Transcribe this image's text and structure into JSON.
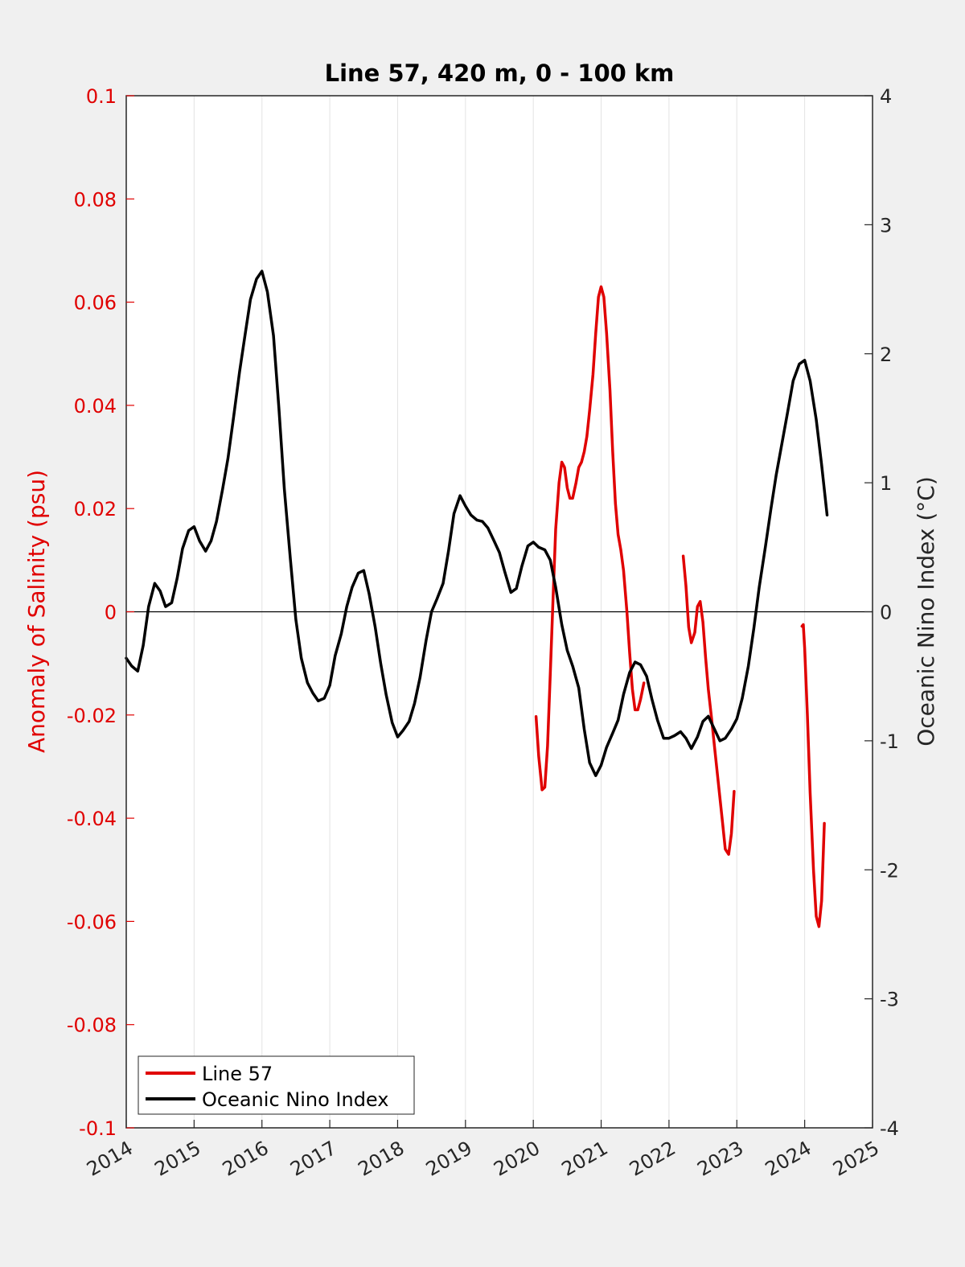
{
  "chart_data": {
    "type": "line",
    "title": "Line 57, 420 m, 0 - 100 km",
    "ylabel_left": "Anomaly of Salinity (psu)",
    "ylabel_right": "Oceanic Nino Index (°C)",
    "xlim": [
      2014,
      2025
    ],
    "ylim_left": [
      -0.1,
      0.1
    ],
    "ylim_right": [
      -4,
      4
    ],
    "xticks": [
      "2014",
      "2015",
      "2016",
      "2017",
      "2018",
      "2019",
      "2020",
      "2021",
      "2022",
      "2023",
      "2024",
      "2025"
    ],
    "yticks_left": [
      "0.1",
      "0.08",
      "0.06",
      "0.04",
      "0.02",
      "0",
      "-0.02",
      "-0.04",
      "-0.06",
      "-0.08",
      "-0.1"
    ],
    "yticks_right": [
      "4",
      "3",
      "2",
      "1",
      "0",
      "-1",
      "-2",
      "-3",
      "-4"
    ],
    "grid": "vertical",
    "zero_line": true,
    "legend_position": "bottom-left",
    "series": [
      {
        "name": "Line 57",
        "axis": "left",
        "color": "#e00000",
        "segments": [
          [
            [
              2020.04,
              -0.0203
            ],
            [
              2020.08,
              -0.028
            ],
            [
              2020.13,
              -0.0345
            ],
            [
              2020.17,
              -0.034
            ],
            [
              2020.21,
              -0.026
            ],
            [
              2020.25,
              -0.012
            ],
            [
              2020.29,
              0.002
            ],
            [
              2020.33,
              0.016
            ],
            [
              2020.38,
              0.025
            ],
            [
              2020.42,
              0.029
            ],
            [
              2020.46,
              0.028
            ],
            [
              2020.5,
              0.024
            ],
            [
              2020.54,
              0.022
            ],
            [
              2020.58,
              0.022
            ],
            [
              2020.63,
              0.025
            ],
            [
              2020.67,
              0.028
            ],
            [
              2020.71,
              0.029
            ],
            [
              2020.75,
              0.031
            ],
            [
              2020.79,
              0.034
            ],
            [
              2020.83,
              0.039
            ],
            [
              2020.88,
              0.046
            ],
            [
              2020.92,
              0.054
            ],
            [
              2020.96,
              0.061
            ],
            [
              2021.0,
              0.063
            ],
            [
              2021.04,
              0.061
            ],
            [
              2021.08,
              0.054
            ],
            [
              2021.13,
              0.043
            ],
            [
              2021.17,
              0.031
            ],
            [
              2021.21,
              0.021
            ],
            [
              2021.25,
              0.015
            ],
            [
              2021.29,
              0.012
            ],
            [
              2021.33,
              0.008
            ],
            [
              2021.38,
              0.0
            ],
            [
              2021.42,
              -0.008
            ],
            [
              2021.46,
              -0.015
            ],
            [
              2021.5,
              -0.019
            ],
            [
              2021.54,
              -0.019
            ],
            [
              2021.58,
              -0.017
            ],
            [
              2021.63,
              -0.0138
            ]
          ],
          [
            [
              2022.21,
              0.0108
            ],
            [
              2022.25,
              0.005
            ],
            [
              2022.29,
              -0.003
            ],
            [
              2022.33,
              -0.006
            ],
            [
              2022.38,
              -0.004
            ],
            [
              2022.42,
              0.001
            ],
            [
              2022.46,
              0.002
            ],
            [
              2022.5,
              -0.002
            ],
            [
              2022.54,
              -0.009
            ],
            [
              2022.58,
              -0.015
            ],
            [
              2022.63,
              -0.021
            ],
            [
              2022.67,
              -0.026
            ],
            [
              2022.71,
              -0.031
            ],
            [
              2022.75,
              -0.036
            ],
            [
              2022.79,
              -0.041
            ],
            [
              2022.83,
              -0.046
            ],
            [
              2022.88,
              -0.047
            ],
            [
              2022.92,
              -0.043
            ],
            [
              2022.96,
              -0.0348
            ]
          ],
          [
            [
              2023.96,
              -0.0028
            ],
            [
              2023.98,
              -0.0025
            ],
            [
              2024.0,
              -0.007
            ],
            [
              2024.04,
              -0.02
            ],
            [
              2024.08,
              -0.035
            ],
            [
              2024.13,
              -0.05
            ],
            [
              2024.17,
              -0.059
            ],
            [
              2024.21,
              -0.061
            ],
            [
              2024.25,
              -0.056
            ],
            [
              2024.29,
              -0.041
            ]
          ]
        ]
      },
      {
        "name": "Oceanic Nino Index",
        "axis": "right",
        "color": "#000000",
        "points": [
          [
            2014.0,
            -0.36
          ],
          [
            2014.08,
            -0.42
          ],
          [
            2014.17,
            -0.46
          ],
          [
            2014.25,
            -0.26
          ],
          [
            2014.33,
            0.04
          ],
          [
            2014.42,
            0.22
          ],
          [
            2014.5,
            0.16
          ],
          [
            2014.58,
            0.04
          ],
          [
            2014.67,
            0.07
          ],
          [
            2014.75,
            0.26
          ],
          [
            2014.83,
            0.49
          ],
          [
            2014.92,
            0.63
          ],
          [
            2015.0,
            0.66
          ],
          [
            2015.08,
            0.55
          ],
          [
            2015.17,
            0.47
          ],
          [
            2015.25,
            0.55
          ],
          [
            2015.33,
            0.7
          ],
          [
            2015.42,
            0.95
          ],
          [
            2015.5,
            1.19
          ],
          [
            2015.58,
            1.5
          ],
          [
            2015.67,
            1.86
          ],
          [
            2015.75,
            2.14
          ],
          [
            2015.83,
            2.42
          ],
          [
            2015.92,
            2.58
          ],
          [
            2016.0,
            2.64
          ],
          [
            2016.08,
            2.48
          ],
          [
            2016.17,
            2.14
          ],
          [
            2016.25,
            1.58
          ],
          [
            2016.33,
            0.95
          ],
          [
            2016.42,
            0.4
          ],
          [
            2016.5,
            -0.06
          ],
          [
            2016.58,
            -0.36
          ],
          [
            2016.67,
            -0.55
          ],
          [
            2016.75,
            -0.63
          ],
          [
            2016.83,
            -0.69
          ],
          [
            2016.92,
            -0.67
          ],
          [
            2017.0,
            -0.57
          ],
          [
            2017.08,
            -0.34
          ],
          [
            2017.17,
            -0.17
          ],
          [
            2017.25,
            0.04
          ],
          [
            2017.33,
            0.19
          ],
          [
            2017.42,
            0.3
          ],
          [
            2017.5,
            0.32
          ],
          [
            2017.58,
            0.14
          ],
          [
            2017.67,
            -0.12
          ],
          [
            2017.75,
            -0.4
          ],
          [
            2017.83,
            -0.64
          ],
          [
            2017.92,
            -0.86
          ],
          [
            2018.0,
            -0.97
          ],
          [
            2018.08,
            -0.92
          ],
          [
            2018.17,
            -0.85
          ],
          [
            2018.25,
            -0.71
          ],
          [
            2018.33,
            -0.51
          ],
          [
            2018.42,
            -0.22
          ],
          [
            2018.5,
            0.0
          ],
          [
            2018.58,
            0.1
          ],
          [
            2018.67,
            0.22
          ],
          [
            2018.75,
            0.47
          ],
          [
            2018.83,
            0.76
          ],
          [
            2018.92,
            0.9
          ],
          [
            2019.0,
            0.82
          ],
          [
            2019.08,
            0.75
          ],
          [
            2019.17,
            0.71
          ],
          [
            2019.25,
            0.7
          ],
          [
            2019.33,
            0.65
          ],
          [
            2019.42,
            0.55
          ],
          [
            2019.5,
            0.46
          ],
          [
            2019.58,
            0.31
          ],
          [
            2019.67,
            0.15
          ],
          [
            2019.75,
            0.18
          ],
          [
            2019.83,
            0.35
          ],
          [
            2019.92,
            0.51
          ],
          [
            2020.0,
            0.54
          ],
          [
            2020.08,
            0.5
          ],
          [
            2020.17,
            0.48
          ],
          [
            2020.25,
            0.4
          ],
          [
            2020.33,
            0.19
          ],
          [
            2020.42,
            -0.1
          ],
          [
            2020.5,
            -0.3
          ],
          [
            2020.58,
            -0.42
          ],
          [
            2020.67,
            -0.59
          ],
          [
            2020.75,
            -0.91
          ],
          [
            2020.83,
            -1.17
          ],
          [
            2020.92,
            -1.27
          ],
          [
            2021.0,
            -1.19
          ],
          [
            2021.08,
            -1.05
          ],
          [
            2021.17,
            -0.94
          ],
          [
            2021.25,
            -0.84
          ],
          [
            2021.33,
            -0.64
          ],
          [
            2021.42,
            -0.47
          ],
          [
            2021.5,
            -0.39
          ],
          [
            2021.58,
            -0.41
          ],
          [
            2021.67,
            -0.5
          ],
          [
            2021.75,
            -0.68
          ],
          [
            2021.83,
            -0.84
          ],
          [
            2021.92,
            -0.98
          ],
          [
            2022.0,
            -0.98
          ],
          [
            2022.08,
            -0.96
          ],
          [
            2022.17,
            -0.93
          ],
          [
            2022.25,
            -0.98
          ],
          [
            2022.33,
            -1.06
          ],
          [
            2022.42,
            -0.97
          ],
          [
            2022.5,
            -0.85
          ],
          [
            2022.58,
            -0.81
          ],
          [
            2022.67,
            -0.91
          ],
          [
            2022.75,
            -1.0
          ],
          [
            2022.83,
            -0.98
          ],
          [
            2022.92,
            -0.91
          ],
          [
            2023.0,
            -0.83
          ],
          [
            2023.08,
            -0.67
          ],
          [
            2023.17,
            -0.42
          ],
          [
            2023.25,
            -0.13
          ],
          [
            2023.33,
            0.19
          ],
          [
            2023.42,
            0.5
          ],
          [
            2023.5,
            0.79
          ],
          [
            2023.58,
            1.06
          ],
          [
            2023.67,
            1.32
          ],
          [
            2023.75,
            1.55
          ],
          [
            2023.83,
            1.79
          ],
          [
            2023.92,
            1.92
          ],
          [
            2024.0,
            1.95
          ],
          [
            2024.08,
            1.79
          ],
          [
            2024.17,
            1.49
          ],
          [
            2024.25,
            1.14
          ],
          [
            2024.33,
            0.75
          ]
        ]
      }
    ]
  }
}
